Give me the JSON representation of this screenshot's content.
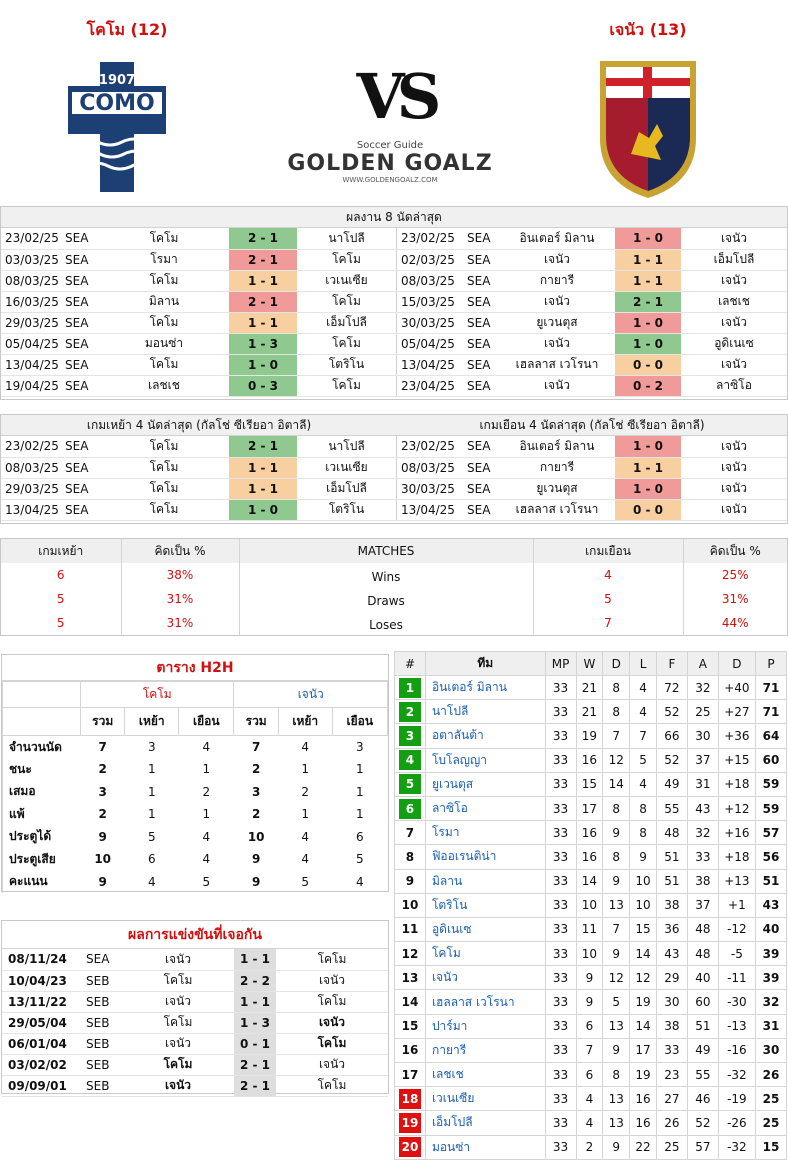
{
  "home": {
    "label": "โคโม (12)"
  },
  "away": {
    "label": "เจนัว (13)"
  },
  "logos": {
    "como_year": "1907",
    "como_name": "COMO",
    "vs": "VS",
    "brand_top": "Soccer Guide",
    "brand": "GOLDEN GOALZ",
    "brand_url": "WWW.GOLDENGOALZ.COM"
  },
  "last8": {
    "caption": "ผลงาน 8 นัดล่าสุด",
    "home_rows": [
      [
        "23/02/25",
        "SEA",
        "โคโม",
        "2 - 1",
        "นาโปลี",
        "w"
      ],
      [
        "03/03/25",
        "SEA",
        "โรมา",
        "2 - 1",
        "โคโม",
        "l"
      ],
      [
        "08/03/25",
        "SEA",
        "โคโม",
        "1 - 1",
        "เวเนเซีย",
        "d"
      ],
      [
        "16/03/25",
        "SEA",
        "มิลาน",
        "2 - 1",
        "โคโม",
        "l"
      ],
      [
        "29/03/25",
        "SEA",
        "โคโม",
        "1 - 1",
        "เอ็มโปลี",
        "d"
      ],
      [
        "05/04/25",
        "SEA",
        "มอนซ่า",
        "1 - 3",
        "โคโม",
        "w"
      ],
      [
        "13/04/25",
        "SEA",
        "โคโม",
        "1 - 0",
        "โตริโน",
        "w"
      ],
      [
        "19/04/25",
        "SEA",
        "เลชเช",
        "0 - 3",
        "โคโม",
        "w"
      ]
    ],
    "away_rows": [
      [
        "23/02/25",
        "SEA",
        "อินเตอร์ มิลาน",
        "1 - 0",
        "เจนัว",
        "l"
      ],
      [
        "02/03/25",
        "SEA",
        "เจนัว",
        "1 - 1",
        "เอ็มโปลี",
        "d"
      ],
      [
        "08/03/25",
        "SEA",
        "กายารี",
        "1 - 1",
        "เจนัว",
        "d"
      ],
      [
        "15/03/25",
        "SEA",
        "เจนัว",
        "2 - 1",
        "เลชเช",
        "w"
      ],
      [
        "30/03/25",
        "SEA",
        "ยูเวนตุส",
        "1 - 0",
        "เจนัว",
        "l"
      ],
      [
        "05/04/25",
        "SEA",
        "เจนัว",
        "1 - 0",
        "อูดิเนเซ",
        "w"
      ],
      [
        "13/04/25",
        "SEA",
        "เฮลลาส เวโรนา",
        "0 - 0",
        "เจนัว",
        "d"
      ],
      [
        "23/04/25",
        "SEA",
        "เจนัว",
        "0 - 2",
        "ลาซิโอ",
        "l"
      ]
    ]
  },
  "last4": {
    "home_caption": "เกมเหย้า 4 นัดล่าสุด (กัลโช่ ซีเรียอา อิตาลี)",
    "away_caption": "เกมเยือน 4 นัดล่าสุด (กัลโช่ ซีเรียอา อิตาลี)",
    "home_rows": [
      [
        "23/02/25",
        "SEA",
        "โคโม",
        "2 - 1",
        "นาโปลี",
        "w"
      ],
      [
        "08/03/25",
        "SEA",
        "โคโม",
        "1 - 1",
        "เวเนเซีย",
        "d"
      ],
      [
        "29/03/25",
        "SEA",
        "โคโม",
        "1 - 1",
        "เอ็มโปลี",
        "d"
      ],
      [
        "13/04/25",
        "SEA",
        "โคโม",
        "1 - 0",
        "โตริโน",
        "w"
      ]
    ],
    "away_rows": [
      [
        "23/02/25",
        "SEA",
        "อินเตอร์ มิลาน",
        "1 - 0",
        "เจนัว",
        "l"
      ],
      [
        "08/03/25",
        "SEA",
        "กายารี",
        "1 - 1",
        "เจนัว",
        "d"
      ],
      [
        "30/03/25",
        "SEA",
        "ยูเวนตุส",
        "1 - 0",
        "เจนัว",
        "l"
      ],
      [
        "13/04/25",
        "SEA",
        "เฮลลาส เวโรนา",
        "0 - 0",
        "เจนัว",
        "d"
      ]
    ]
  },
  "summary": {
    "headers": [
      "เกมเหย้า",
      "คิดเป็น %",
      "MATCHES",
      "เกมเยือน",
      "คิดเป็น %"
    ],
    "rows": [
      [
        "6",
        "38%",
        "Wins",
        "4",
        "25%"
      ],
      [
        "5",
        "31%",
        "Draws",
        "5",
        "31%"
      ],
      [
        "5",
        "31%",
        "Loses",
        "7",
        "44%"
      ]
    ]
  },
  "h2h": {
    "title": "ตาราง H2H",
    "home": "โคโม",
    "away": "เจนัว",
    "sub": [
      "รวม",
      "เหย้า",
      "เยือน",
      "รวม",
      "เหย้า",
      "เยือน"
    ],
    "rows": [
      [
        "จำนวนนัด",
        "7",
        "3",
        "4",
        "7",
        "4",
        "3"
      ],
      [
        "ชนะ",
        "2",
        "1",
        "1",
        "2",
        "1",
        "1"
      ],
      [
        "เสมอ",
        "3",
        "1",
        "2",
        "3",
        "2",
        "1"
      ],
      [
        "แพ้",
        "2",
        "1",
        "1",
        "2",
        "1",
        "1"
      ],
      [
        "ประตูได้",
        "9",
        "5",
        "4",
        "10",
        "4",
        "6"
      ],
      [
        "ประตูเสีย",
        "10",
        "6",
        "4",
        "9",
        "4",
        "5"
      ],
      [
        "คะแนน",
        "9",
        "4",
        "5",
        "9",
        "5",
        "4"
      ]
    ]
  },
  "meetings": {
    "title": "ผลการแข่งขันที่เจอกัน",
    "rows": [
      [
        "08/11/24",
        "SEA",
        "เจนัว",
        "1 - 1",
        "โคโม",
        "",
        ""
      ],
      [
        "10/04/23",
        "SEB",
        "โคโม",
        "2 - 2",
        "เจนัว",
        "",
        ""
      ],
      [
        "13/11/22",
        "SEB",
        "เจนัว",
        "1 - 1",
        "โคโม",
        "",
        ""
      ],
      [
        "29/05/04",
        "SEB",
        "โคโม",
        "1 - 3",
        "เจนัว",
        "",
        "b"
      ],
      [
        "06/01/04",
        "SEB",
        "เจนัว",
        "0 - 1",
        "โคโม",
        "",
        "b"
      ],
      [
        "03/02/02",
        "SEB",
        "โคโม",
        "2 - 1",
        "เจนัว",
        "b",
        ""
      ],
      [
        "09/09/01",
        "SEB",
        "เจนัว",
        "2 - 1",
        "โคโม",
        "b",
        ""
      ]
    ]
  },
  "standings": {
    "headers": [
      "#",
      "ทีม",
      "MP",
      "W",
      "D",
      "L",
      "F",
      "A",
      "D",
      "P"
    ],
    "rows": [
      [
        "1",
        "อินเตอร์ มิลาน",
        "33",
        "21",
        "8",
        "4",
        "72",
        "32",
        "+40",
        "71"
      ],
      [
        "2",
        "นาโปลี",
        "33",
        "21",
        "8",
        "4",
        "52",
        "25",
        "+27",
        "71"
      ],
      [
        "3",
        "อตาลันต้า",
        "33",
        "19",
        "7",
        "7",
        "66",
        "30",
        "+36",
        "64"
      ],
      [
        "4",
        "โบโลญญา",
        "33",
        "16",
        "12",
        "5",
        "52",
        "37",
        "+15",
        "60"
      ],
      [
        "5",
        "ยูเวนตุส",
        "33",
        "15",
        "14",
        "4",
        "49",
        "31",
        "+18",
        "59"
      ],
      [
        "6",
        "ลาซิโอ",
        "33",
        "17",
        "8",
        "8",
        "55",
        "43",
        "+12",
        "59"
      ],
      [
        "7",
        "โรมา",
        "33",
        "16",
        "9",
        "8",
        "48",
        "32",
        "+16",
        "57"
      ],
      [
        "8",
        "ฟิออเรนติน่า",
        "33",
        "16",
        "8",
        "9",
        "51",
        "33",
        "+18",
        "56"
      ],
      [
        "9",
        "มิลาน",
        "33",
        "14",
        "9",
        "10",
        "51",
        "38",
        "+13",
        "51"
      ],
      [
        "10",
        "โตริโน",
        "33",
        "10",
        "13",
        "10",
        "38",
        "37",
        "+1",
        "43"
      ],
      [
        "11",
        "อูดิเนเซ",
        "33",
        "11",
        "7",
        "15",
        "36",
        "48",
        "-12",
        "40"
      ],
      [
        "12",
        "โคโม",
        "33",
        "10",
        "9",
        "14",
        "43",
        "48",
        "-5",
        "39"
      ],
      [
        "13",
        "เจนัว",
        "33",
        "9",
        "12",
        "12",
        "29",
        "40",
        "-11",
        "39"
      ],
      [
        "14",
        "เฮลลาส เวโรนา",
        "33",
        "9",
        "5",
        "19",
        "30",
        "60",
        "-30",
        "32"
      ],
      [
        "15",
        "ปาร์มา",
        "33",
        "6",
        "13",
        "14",
        "38",
        "51",
        "-13",
        "31"
      ],
      [
        "16",
        "กายารี",
        "33",
        "7",
        "9",
        "17",
        "33",
        "49",
        "-16",
        "30"
      ],
      [
        "17",
        "เลชเช",
        "33",
        "6",
        "8",
        "19",
        "23",
        "55",
        "-32",
        "26"
      ],
      [
        "18",
        "เวเนเซีย",
        "33",
        "4",
        "13",
        "16",
        "27",
        "46",
        "-19",
        "25"
      ],
      [
        "19",
        "เอ็มโปลี",
        "33",
        "4",
        "13",
        "16",
        "26",
        "52",
        "-26",
        "25"
      ],
      [
        "20",
        "มอนซ่า",
        "33",
        "2",
        "9",
        "22",
        "25",
        "57",
        "-32",
        "15"
      ]
    ]
  },
  "colors": {
    "win": "#8fc98f",
    "draw": "#f7cfa0",
    "loss": "#f19a9a",
    "accent": "#d01010",
    "cl": "#12a012",
    "rel": "#e01010"
  }
}
